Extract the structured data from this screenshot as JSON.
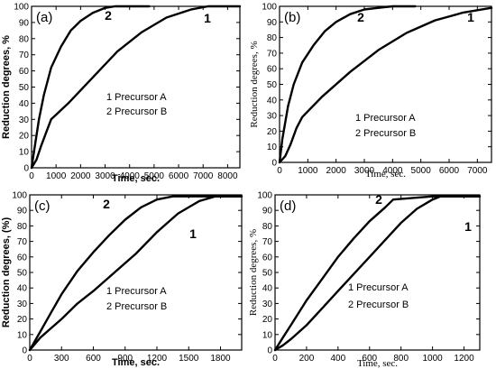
{
  "chart_data": [
    {
      "type": "line",
      "panel_label": "(a)",
      "xlabel": "Time, sec.",
      "ylabel": "Reduction degrees, %",
      "x_ticks": [
        "0",
        "1000",
        "2000",
        "3000",
        "4000",
        "5000",
        "6000",
        "7000",
        "8000"
      ],
      "y_ticks": [
        "0",
        "10",
        "20",
        "30",
        "40",
        "50",
        "60",
        "70",
        "80",
        "90",
        "100"
      ],
      "xlim": [
        0,
        8500
      ],
      "ylim": [
        0,
        100
      ],
      "legend": [
        "1   Precursor  A",
        "2   Precursor  B"
      ],
      "series": [
        {
          "name": "1",
          "x": [
            0,
            200,
            400,
            600,
            800,
            1500,
            2500,
            3500,
            4500,
            5500,
            6500,
            7200,
            8500
          ],
          "y": [
            0,
            5,
            14,
            22,
            30,
            40,
            56,
            72,
            84,
            93,
            98,
            100,
            100
          ]
        },
        {
          "name": "2",
          "x": [
            0,
            100,
            300,
            500,
            800,
            1200,
            1600,
            2000,
            2500,
            3000,
            3400,
            4000,
            4800
          ],
          "y": [
            0,
            10,
            30,
            45,
            62,
            75,
            85,
            91,
            96,
            99,
            100,
            100,
            100
          ]
        }
      ]
    },
    {
      "type": "line",
      "panel_label": "(b)",
      "xlabel": "Time, sec.",
      "ylabel": "Reduction degrees, %",
      "x_ticks": [
        "0",
        "1000",
        "2000",
        "3000",
        "4000",
        "5000",
        "6000",
        "7000"
      ],
      "y_ticks": [
        "0",
        "10",
        "20",
        "30",
        "40",
        "50",
        "60",
        "70",
        "80",
        "90",
        "100"
      ],
      "xlim": [
        0,
        7500
      ],
      "ylim": [
        0,
        100
      ],
      "legend": [
        "1   Precursor  A",
        "2   Precursor  B"
      ],
      "series": [
        {
          "name": "1",
          "x": [
            0,
            200,
            400,
            600,
            800,
            1500,
            2500,
            3500,
            4500,
            5500,
            6500,
            7500
          ],
          "y": [
            0,
            4,
            12,
            22,
            29,
            42,
            58,
            72,
            83,
            91,
            96,
            99
          ]
        },
        {
          "name": "2",
          "x": [
            0,
            100,
            300,
            500,
            800,
            1200,
            1600,
            2000,
            2500,
            3000,
            3500,
            4000,
            4800
          ],
          "y": [
            0,
            15,
            36,
            50,
            64,
            75,
            84,
            90,
            95,
            98,
            99,
            100,
            100
          ]
        }
      ]
    },
    {
      "type": "line",
      "panel_label": "(c)",
      "xlabel": "Time, sec.",
      "ylabel": "Reduction degrees, (%)",
      "x_ticks": [
        "0",
        "300",
        "600",
        "900",
        "1200",
        "1500",
        "1800"
      ],
      "y_ticks": [
        "0",
        "10",
        "20",
        "30",
        "40",
        "50",
        "60",
        "70",
        "80",
        "90",
        "100"
      ],
      "xlim": [
        0,
        2000
      ],
      "ylim": [
        0,
        100
      ],
      "legend": [
        "1   Precursor  A",
        "2   Precursor  B"
      ],
      "series": [
        {
          "name": "1",
          "x": [
            0,
            100,
            200,
            300,
            450,
            600,
            800,
            1000,
            1200,
            1400,
            1600,
            1750,
            2000
          ],
          "y": [
            0,
            8,
            14,
            20,
            30,
            38,
            50,
            62,
            76,
            88,
            96,
            99,
            99
          ]
        },
        {
          "name": "2",
          "x": [
            0,
            100,
            200,
            300,
            450,
            600,
            750,
            900,
            1050,
            1200,
            1350,
            1500,
            2000
          ],
          "y": [
            0,
            12,
            24,
            36,
            51,
            63,
            74,
            84,
            92,
            97,
            99,
            99,
            99
          ]
        }
      ]
    },
    {
      "type": "line",
      "panel_label": "(d)",
      "xlabel": "Time, sec.",
      "ylabel": "Reduction degrees, %",
      "x_ticks": [
        "0",
        "200",
        "400",
        "600",
        "800",
        "1000",
        "1200"
      ],
      "y_ticks": [
        "0",
        "10",
        "20",
        "30",
        "40",
        "50",
        "60",
        "70",
        "80",
        "90",
        "100"
      ],
      "xlim": [
        0,
        1300
      ],
      "ylim": [
        0,
        100
      ],
      "legend": [
        "1   Precursor  A",
        "2   Precursor  B"
      ],
      "series": [
        {
          "name": "1",
          "x": [
            0,
            50,
            100,
            200,
            300,
            400,
            500,
            600,
            700,
            800,
            900,
            1000,
            1050,
            1300
          ],
          "y": [
            0,
            3,
            7,
            16,
            27,
            38,
            49,
            60,
            71,
            82,
            91,
            97,
            99,
            99
          ]
        },
        {
          "name": "2",
          "x": [
            0,
            50,
            100,
            200,
            300,
            400,
            500,
            600,
            700,
            750,
            1000,
            1300
          ],
          "y": [
            0,
            8,
            16,
            32,
            46,
            60,
            72,
            83,
            92,
            97,
            99,
            99
          ]
        }
      ]
    }
  ]
}
